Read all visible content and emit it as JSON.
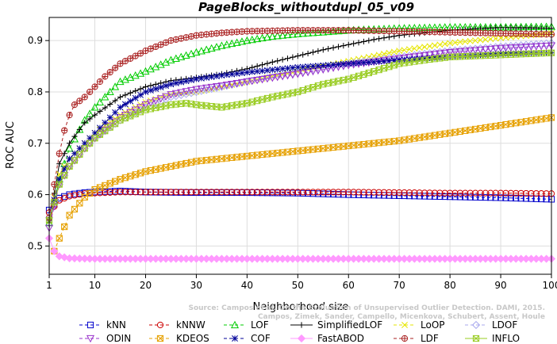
{
  "chart_data": {
    "type": "line",
    "title": "PageBlocks_withoutdupl_05_v09",
    "xlabel": "Neighborhood size",
    "ylabel": "ROC AUC",
    "xlim": [
      1,
      100
    ],
    "ylim": [
      0.445,
      0.945
    ],
    "x_ticks": [
      1,
      10,
      20,
      30,
      40,
      50,
      60,
      70,
      80,
      90,
      100
    ],
    "y_ticks": [
      0.5,
      0.6,
      0.7,
      0.8,
      0.9
    ],
    "grid": true,
    "legend_position": "bottom",
    "watermark": [
      "Source: Campos et al. On the Evaluation of Unsupervised Outlier Detection. DAMI, 2015.",
      "Campos, Zimek, Sander, Campello, Micenkova, Schubert, Assent, Houle"
    ],
    "series": [
      {
        "name": "kNN",
        "color": "#0000cc",
        "marker": "square",
        "dash": "4,3",
        "points": [
          [
            1,
            0.57
          ],
          [
            3,
            0.593
          ],
          [
            5,
            0.6
          ],
          [
            8,
            0.604
          ],
          [
            10,
            0.605
          ],
          [
            15,
            0.607
          ],
          [
            20,
            0.605
          ],
          [
            30,
            0.604
          ],
          [
            40,
            0.604
          ],
          [
            50,
            0.603
          ],
          [
            60,
            0.6
          ],
          [
            70,
            0.598
          ],
          [
            80,
            0.596
          ],
          [
            90,
            0.594
          ],
          [
            100,
            0.591
          ]
        ]
      },
      {
        "name": "kNNW",
        "color": "#cc0000",
        "marker": "circle",
        "dash": "4,3",
        "points": [
          [
            1,
            0.565
          ],
          [
            3,
            0.589
          ],
          [
            5,
            0.597
          ],
          [
            8,
            0.602
          ],
          [
            10,
            0.603
          ],
          [
            15,
            0.605
          ],
          [
            20,
            0.605
          ],
          [
            30,
            0.605
          ],
          [
            40,
            0.605
          ],
          [
            50,
            0.605
          ],
          [
            60,
            0.605
          ],
          [
            70,
            0.604
          ],
          [
            80,
            0.603
          ],
          [
            90,
            0.603
          ],
          [
            100,
            0.602
          ]
        ]
      },
      {
        "name": "LOF",
        "color": "#00cc00",
        "marker": "triangle",
        "dash": "4,3",
        "points": [
          [
            1,
            0.545
          ],
          [
            3,
            0.63
          ],
          [
            5,
            0.69
          ],
          [
            8,
            0.745
          ],
          [
            10,
            0.77
          ],
          [
            12,
            0.79
          ],
          [
            15,
            0.82
          ],
          [
            20,
            0.84
          ],
          [
            25,
            0.862
          ],
          [
            30,
            0.877
          ],
          [
            35,
            0.89
          ],
          [
            40,
            0.9
          ],
          [
            45,
            0.908
          ],
          [
            50,
            0.913
          ],
          [
            60,
            0.92
          ],
          [
            70,
            0.924
          ],
          [
            80,
            0.926
          ],
          [
            90,
            0.926
          ],
          [
            100,
            0.927
          ]
        ]
      },
      {
        "name": "SimplifiedLOF",
        "color": "#000000",
        "marker": "plus",
        "dash": "",
        "points": [
          [
            1,
            0.545
          ],
          [
            3,
            0.66
          ],
          [
            5,
            0.7
          ],
          [
            8,
            0.74
          ],
          [
            10,
            0.755
          ],
          [
            15,
            0.79
          ],
          [
            20,
            0.81
          ],
          [
            25,
            0.822
          ],
          [
            30,
            0.828
          ],
          [
            35,
            0.835
          ],
          [
            40,
            0.845
          ],
          [
            45,
            0.858
          ],
          [
            50,
            0.87
          ],
          [
            55,
            0.882
          ],
          [
            60,
            0.892
          ],
          [
            65,
            0.902
          ],
          [
            70,
            0.91
          ],
          [
            75,
            0.915
          ],
          [
            80,
            0.92
          ],
          [
            85,
            0.923
          ],
          [
            90,
            0.925
          ],
          [
            100,
            0.924
          ]
        ]
      },
      {
        "name": "LoOP",
        "color": "#e6e600",
        "marker": "x",
        "dash": "4,3",
        "points": [
          [
            1,
            0.55
          ],
          [
            3,
            0.64
          ],
          [
            5,
            0.67
          ],
          [
            8,
            0.7
          ],
          [
            10,
            0.72
          ],
          [
            15,
            0.755
          ],
          [
            20,
            0.78
          ],
          [
            25,
            0.795
          ],
          [
            30,
            0.8
          ],
          [
            35,
            0.81
          ],
          [
            40,
            0.82
          ],
          [
            50,
            0.84
          ],
          [
            60,
            0.86
          ],
          [
            70,
            0.88
          ],
          [
            80,
            0.895
          ],
          [
            90,
            0.905
          ],
          [
            100,
            0.914
          ]
        ]
      },
      {
        "name": "LDOF",
        "color": "#aaaaee",
        "marker": "diamond",
        "dash": "4,3",
        "points": [
          [
            1,
            0.555
          ],
          [
            3,
            0.62
          ],
          [
            5,
            0.655
          ],
          [
            8,
            0.69
          ],
          [
            10,
            0.71
          ],
          [
            15,
            0.745
          ],
          [
            20,
            0.77
          ],
          [
            25,
            0.79
          ],
          [
            30,
            0.8
          ],
          [
            35,
            0.81
          ],
          [
            40,
            0.82
          ],
          [
            50,
            0.838
          ],
          [
            60,
            0.855
          ],
          [
            70,
            0.868
          ],
          [
            80,
            0.88
          ],
          [
            90,
            0.888
          ],
          [
            100,
            0.895
          ]
        ]
      },
      {
        "name": "ODIN",
        "color": "#9933cc",
        "marker": "triangle-down",
        "dash": "4,3",
        "points": [
          [
            1,
            0.535
          ],
          [
            3,
            0.62
          ],
          [
            5,
            0.655
          ],
          [
            8,
            0.69
          ],
          [
            10,
            0.71
          ],
          [
            15,
            0.75
          ],
          [
            20,
            0.775
          ],
          [
            25,
            0.795
          ],
          [
            30,
            0.805
          ],
          [
            35,
            0.812
          ],
          [
            40,
            0.82
          ],
          [
            50,
            0.835
          ],
          [
            60,
            0.852
          ],
          [
            70,
            0.865
          ],
          [
            80,
            0.877
          ],
          [
            90,
            0.885
          ],
          [
            100,
            0.89
          ]
        ]
      },
      {
        "name": "KDEOS",
        "color": "#e6a000",
        "marker": "square-x",
        "dash": "4,3",
        "points": [
          [
            2,
            0.49
          ],
          [
            3,
            0.515
          ],
          [
            5,
            0.56
          ],
          [
            8,
            0.595
          ],
          [
            10,
            0.61
          ],
          [
            15,
            0.63
          ],
          [
            20,
            0.645
          ],
          [
            25,
            0.655
          ],
          [
            30,
            0.665
          ],
          [
            40,
            0.675
          ],
          [
            50,
            0.685
          ],
          [
            60,
            0.695
          ],
          [
            70,
            0.705
          ],
          [
            80,
            0.72
          ],
          [
            90,
            0.735
          ],
          [
            100,
            0.75
          ]
        ]
      },
      {
        "name": "COF",
        "color": "#000099",
        "marker": "asterisk",
        "dash": "4,3",
        "points": [
          [
            1,
            0.55
          ],
          [
            3,
            0.63
          ],
          [
            5,
            0.67
          ],
          [
            8,
            0.7
          ],
          [
            10,
            0.72
          ],
          [
            15,
            0.77
          ],
          [
            20,
            0.8
          ],
          [
            25,
            0.815
          ],
          [
            30,
            0.825
          ],
          [
            35,
            0.832
          ],
          [
            40,
            0.838
          ],
          [
            50,
            0.848
          ],
          [
            60,
            0.855
          ],
          [
            70,
            0.862
          ],
          [
            80,
            0.868
          ],
          [
            90,
            0.874
          ],
          [
            100,
            0.876
          ]
        ]
      },
      {
        "name": "FastABOD",
        "color": "#ff99ff",
        "marker": "diamond-filled",
        "dash": "",
        "points": [
          [
            1,
            0.515
          ],
          [
            2,
            0.49
          ],
          [
            3,
            0.48
          ],
          [
            5,
            0.476
          ],
          [
            10,
            0.475
          ],
          [
            20,
            0.475
          ],
          [
            30,
            0.475
          ],
          [
            40,
            0.475
          ],
          [
            50,
            0.475
          ],
          [
            60,
            0.475
          ],
          [
            70,
            0.475
          ],
          [
            80,
            0.475
          ],
          [
            90,
            0.475
          ],
          [
            100,
            0.475
          ]
        ]
      },
      {
        "name": "LDF",
        "color": "#aa2222",
        "marker": "circle-plus",
        "dash": "4,3",
        "points": [
          [
            1,
            0.555
          ],
          [
            2,
            0.62
          ],
          [
            3,
            0.68
          ],
          [
            4,
            0.725
          ],
          [
            5,
            0.755
          ],
          [
            6,
            0.775
          ],
          [
            8,
            0.79
          ],
          [
            10,
            0.81
          ],
          [
            12,
            0.83
          ],
          [
            15,
            0.855
          ],
          [
            18,
            0.87
          ],
          [
            20,
            0.88
          ],
          [
            25,
            0.9
          ],
          [
            30,
            0.91
          ],
          [
            35,
            0.915
          ],
          [
            40,
            0.918
          ],
          [
            50,
            0.92
          ],
          [
            60,
            0.92
          ],
          [
            70,
            0.918
          ],
          [
            80,
            0.916
          ],
          [
            90,
            0.914
          ],
          [
            100,
            0.912
          ]
        ]
      },
      {
        "name": "INFLO",
        "color": "#99cc22",
        "marker": "square-x",
        "dash": "",
        "points": [
          [
            1,
            0.55
          ],
          [
            3,
            0.62
          ],
          [
            5,
            0.655
          ],
          [
            8,
            0.69
          ],
          [
            10,
            0.71
          ],
          [
            15,
            0.745
          ],
          [
            20,
            0.765
          ],
          [
            25,
            0.775
          ],
          [
            28,
            0.778
          ],
          [
            30,
            0.775
          ],
          [
            35,
            0.77
          ],
          [
            40,
            0.778
          ],
          [
            45,
            0.79
          ],
          [
            50,
            0.8
          ],
          [
            55,
            0.815
          ],
          [
            60,
            0.825
          ],
          [
            65,
            0.84
          ],
          [
            70,
            0.855
          ],
          [
            75,
            0.862
          ],
          [
            80,
            0.868
          ],
          [
            90,
            0.872
          ],
          [
            100,
            0.876
          ]
        ]
      }
    ],
    "legend_rows": [
      [
        "kNN",
        "kNNW",
        "LOF",
        "SimplifiedLOF",
        "LoOP",
        "LDOF"
      ],
      [
        "ODIN",
        "KDEOS",
        "COF",
        "FastABOD",
        "LDF",
        "INFLO"
      ]
    ]
  }
}
